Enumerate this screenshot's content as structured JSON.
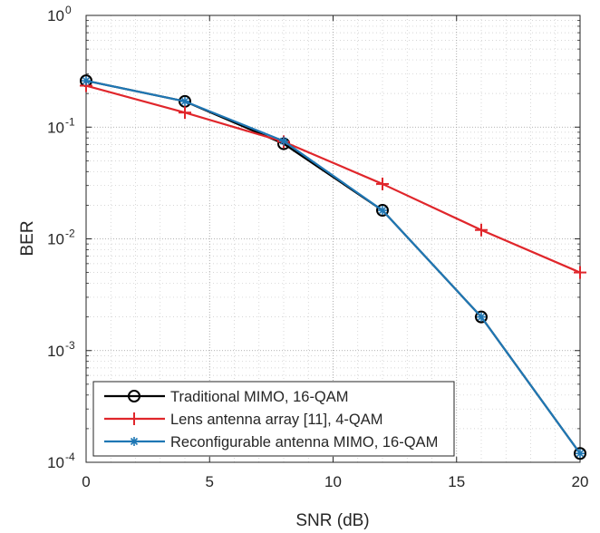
{
  "chart_data": {
    "type": "line",
    "xlabel": "SNR (dB)",
    "ylabel": "BER",
    "x_ticks": [
      0,
      5,
      10,
      15,
      20
    ],
    "y_ticks": [
      {
        "value": 0.0001,
        "base": "10",
        "exp": "-4"
      },
      {
        "value": 0.001,
        "base": "10",
        "exp": "-3"
      },
      {
        "value": 0.01,
        "base": "10",
        "exp": "-2"
      },
      {
        "value": 0.1,
        "base": "10",
        "exp": "-1"
      },
      {
        "value": 1,
        "base": "10",
        "exp": "0"
      }
    ],
    "xlim": [
      0,
      20
    ],
    "ylim": [
      0.0001,
      1
    ],
    "yscale": "log",
    "grid": true,
    "minor_grid": true,
    "legend_position": "bottom-left",
    "series": [
      {
        "name": "Traditional MIMO, 16-QAM",
        "color": "#000000",
        "marker": "circle",
        "x": [
          0,
          4,
          8,
          12,
          16,
          20
        ],
        "y": [
          0.26,
          0.17,
          0.071,
          0.018,
          0.002,
          0.00012
        ]
      },
      {
        "name": "Lens antenna array [11], 4-QAM",
        "color": "#e0262b",
        "marker": "plus",
        "x": [
          0,
          4,
          8,
          12,
          16,
          20
        ],
        "y": [
          0.235,
          0.135,
          0.074,
          0.031,
          0.012,
          0.005
        ]
      },
      {
        "name": "Reconfigurable antenna MIMO, 16-QAM",
        "color": "#1f77b4",
        "marker": "asterisk",
        "x": [
          0,
          4,
          8,
          12,
          16,
          20
        ],
        "y": [
          0.26,
          0.17,
          0.075,
          0.018,
          0.002,
          0.00012
        ]
      }
    ]
  }
}
